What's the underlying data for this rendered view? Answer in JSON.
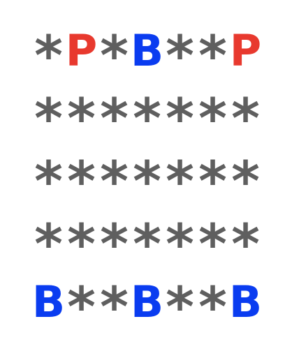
{
  "colors": {
    "P": "#e8392e",
    "B": "#0a3cf0",
    "*": "#5f5f5f"
  },
  "board": {
    "rows": [
      [
        "*",
        "P",
        "*",
        "B",
        "*",
        "*",
        "P"
      ],
      [
        "*",
        "*",
        "*",
        "*",
        "*",
        "*",
        "*"
      ],
      [
        "*",
        "*",
        "*",
        "*",
        "*",
        "*",
        "*"
      ],
      [
        "*",
        "*",
        "*",
        "*",
        "*",
        "*",
        "*"
      ],
      [
        "B",
        "*",
        "*",
        "B",
        "*",
        "*",
        "B"
      ]
    ]
  }
}
